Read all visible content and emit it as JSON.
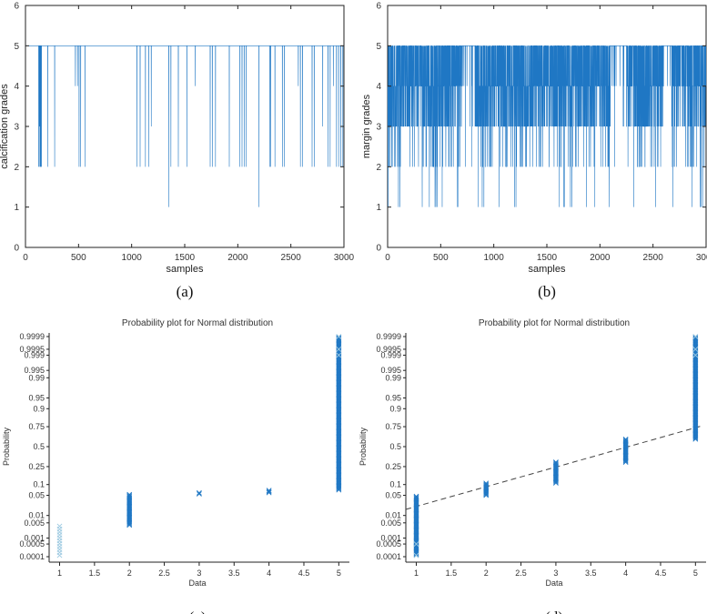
{
  "colors": {
    "series": "#1f77c4",
    "light": "#9ecae1",
    "fit_line": "#444444"
  },
  "chart_data": [
    {
      "panel": "a",
      "caption": "(a)",
      "type": "line",
      "xlabel": "samples",
      "ylabel": "calcification grades",
      "title": "",
      "xlim": [
        0,
        3000
      ],
      "ylim": [
        0,
        6
      ],
      "xticks": [
        "0",
        "500",
        "1000",
        "1500",
        "2000",
        "2500",
        "3000"
      ],
      "yticks": [
        "0",
        "1",
        "2",
        "3",
        "4",
        "5",
        "6"
      ],
      "baseline": 5,
      "spikes": [
        {
          "x": 125,
          "y": 2
        },
        {
          "x": 130,
          "y": 2
        },
        {
          "x": 135,
          "y": 3
        },
        {
          "x": 140,
          "y": 2
        },
        {
          "x": 145,
          "y": 2
        },
        {
          "x": 150,
          "y": 2
        },
        {
          "x": 210,
          "y": 2
        },
        {
          "x": 275,
          "y": 2
        },
        {
          "x": 470,
          "y": 4
        },
        {
          "x": 490,
          "y": 4
        },
        {
          "x": 505,
          "y": 2
        },
        {
          "x": 520,
          "y": 2
        },
        {
          "x": 560,
          "y": 2
        },
        {
          "x": 1050,
          "y": 2
        },
        {
          "x": 1080,
          "y": 2
        },
        {
          "x": 1130,
          "y": 2
        },
        {
          "x": 1160,
          "y": 2
        },
        {
          "x": 1185,
          "y": 3
        },
        {
          "x": 1350,
          "y": 1
        },
        {
          "x": 1370,
          "y": 2
        },
        {
          "x": 1440,
          "y": 2
        },
        {
          "x": 1520,
          "y": 2
        },
        {
          "x": 1600,
          "y": 4
        },
        {
          "x": 1740,
          "y": 2
        },
        {
          "x": 1760,
          "y": 2
        },
        {
          "x": 1790,
          "y": 2
        },
        {
          "x": 1920,
          "y": 2
        },
        {
          "x": 2020,
          "y": 2
        },
        {
          "x": 2040,
          "y": 2
        },
        {
          "x": 2060,
          "y": 2
        },
        {
          "x": 2080,
          "y": 2
        },
        {
          "x": 2200,
          "y": 1
        },
        {
          "x": 2300,
          "y": 2
        },
        {
          "x": 2310,
          "y": 2
        },
        {
          "x": 2350,
          "y": 2
        },
        {
          "x": 2420,
          "y": 2
        },
        {
          "x": 2440,
          "y": 2
        },
        {
          "x": 2570,
          "y": 4
        },
        {
          "x": 2590,
          "y": 2
        },
        {
          "x": 2610,
          "y": 2
        },
        {
          "x": 2700,
          "y": 2
        },
        {
          "x": 2720,
          "y": 2
        },
        {
          "x": 2800,
          "y": 3
        },
        {
          "x": 2850,
          "y": 2
        },
        {
          "x": 2870,
          "y": 2
        },
        {
          "x": 2900,
          "y": 4
        },
        {
          "x": 2930,
          "y": 2
        },
        {
          "x": 2950,
          "y": 2
        },
        {
          "x": 2970,
          "y": 2
        },
        {
          "x": 2990,
          "y": 2
        }
      ]
    },
    {
      "panel": "b",
      "caption": "(b)",
      "type": "line",
      "xlabel": "samples",
      "ylabel": "margin grades",
      "title": "",
      "xlim": [
        0,
        3000
      ],
      "ylim": [
        0,
        6
      ],
      "xticks": [
        "0",
        "500",
        "1000",
        "1500",
        "2000",
        "2500",
        "3000"
      ],
      "yticks": [
        "0",
        "1",
        "2",
        "3",
        "4",
        "5",
        "6"
      ],
      "n_samples": 3000,
      "level_frequencies": {
        "1": 0.012,
        "2": 0.05,
        "3": 0.19,
        "4": 0.32,
        "5": 0.428
      },
      "runs_of_5": [
        [
          700,
          820
        ],
        [
          2100,
          2250
        ],
        [
          2600,
          2680
        ]
      ],
      "dense_1_near": [
        1000,
        1980
      ]
    },
    {
      "panel": "c",
      "caption": "(c)",
      "type": "scatter",
      "title": "Probability plot for Normal distribution",
      "xlabel": "Data",
      "ylabel": "Probability",
      "xlim": [
        0.85,
        5.1
      ],
      "xticks": [
        "1",
        "1.5",
        "2",
        "2.5",
        "3",
        "3.5",
        "4",
        "4.5",
        "5"
      ],
      "yticks": [
        "0.0001",
        "0.0005",
        "0.001",
        "0.005",
        "0.01",
        "0.05",
        "0.1",
        "0.25",
        "0.5",
        "0.75",
        "0.9",
        "0.95",
        "0.99",
        "0.995",
        "0.999",
        "0.9995",
        "0.9999"
      ],
      "probability_ranges": [
        {
          "x": 1,
          "p": [
            0.00012,
            0.004
          ],
          "style": "sparse"
        },
        {
          "x": 2,
          "p": [
            0.004,
            0.055
          ],
          "style": "dense"
        },
        {
          "x": 3,
          "p": [
            0.055,
            0.06
          ],
          "style": "dense"
        },
        {
          "x": 4,
          "p": [
            0.06,
            0.072
          ],
          "style": "dense"
        },
        {
          "x": 5,
          "p": [
            0.072,
            0.9999
          ],
          "style": "dense"
        }
      ],
      "fit_line": null
    },
    {
      "panel": "d",
      "caption": "(d)",
      "type": "scatter",
      "title": "Probability plot for Normal distribution",
      "xlabel": "Data",
      "ylabel": "Probability",
      "xlim": [
        0.85,
        5.1
      ],
      "xticks": [
        "1",
        "1.5",
        "2",
        "2.5",
        "3",
        "3.5",
        "4",
        "4.5",
        "5"
      ],
      "yticks": [
        "0.0001",
        "0.0005",
        "0.001",
        "0.005",
        "0.01",
        "0.05",
        "0.1",
        "0.25",
        "0.5",
        "0.75",
        "0.9",
        "0.95",
        "0.99",
        "0.995",
        "0.999",
        "0.9995",
        "0.9999"
      ],
      "probability_ranges": [
        {
          "x": 1,
          "p": [
            0.00012,
            0.05
          ],
          "style": "dense"
        },
        {
          "x": 2,
          "p": [
            0.05,
            0.11
          ],
          "style": "dense"
        },
        {
          "x": 3,
          "p": [
            0.11,
            0.3
          ],
          "style": "dense"
        },
        {
          "x": 4,
          "p": [
            0.3,
            0.6
          ],
          "style": "dense"
        },
        {
          "x": 5,
          "p": [
            0.6,
            0.9999
          ],
          "style": "dense"
        }
      ],
      "fit_line": {
        "x1": 0.85,
        "p1": 0.017,
        "x2": 5.1,
        "p2": 0.76
      }
    }
  ]
}
